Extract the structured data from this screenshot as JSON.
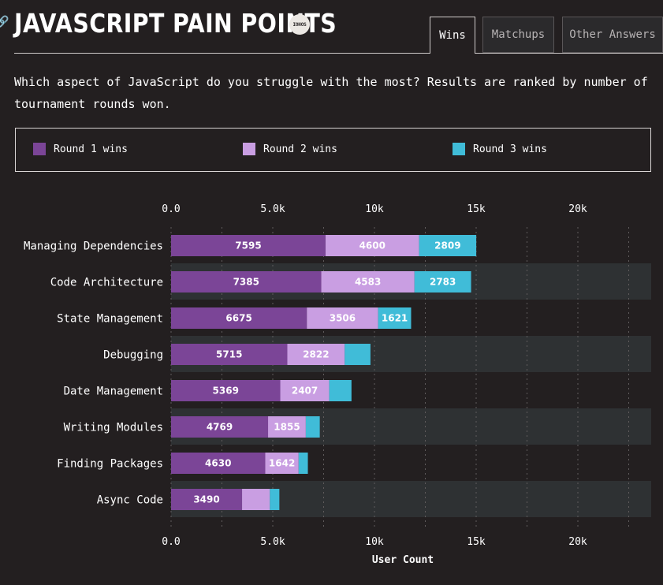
{
  "header": {
    "title": "JAVASCRIPT PAIN POINTS",
    "badge": "IOHOS"
  },
  "tabs": [
    {
      "label": "Wins",
      "active": true
    },
    {
      "label": "Matchups",
      "active": false
    },
    {
      "label": "Other Answers",
      "active": false
    }
  ],
  "description": "Which aspect of JavaScript do you struggle with the most? Results are ranked by number of tournament rounds won.",
  "colors": {
    "round1": "#7b4597",
    "round2": "#c99ee2",
    "round3": "#40bcd8",
    "band": "#2e3133"
  },
  "chart_data": {
    "type": "bar",
    "orientation": "horizontal",
    "stacked": true,
    "categories": [
      "Managing Dependencies",
      "Code Architecture",
      "State Management",
      "Debugging",
      "Date Management",
      "Writing Modules",
      "Finding Packages",
      "Async Code"
    ],
    "series": [
      {
        "name": "Round 1 wins",
        "values": [
          7595,
          7385,
          6675,
          5715,
          5369,
          4769,
          4630,
          3490
        ]
      },
      {
        "name": "Round 2 wins",
        "values": [
          4600,
          4583,
          3506,
          2822,
          2407,
          1855,
          1642,
          1367
        ]
      },
      {
        "name": "Round 3 wins",
        "values": [
          2809,
          2783,
          1621,
          1266,
          1094,
          687,
          454,
          468
        ]
      }
    ],
    "value_labels": [
      [
        "7595",
        "4600",
        "2809"
      ],
      [
        "7385",
        "4583",
        "2783"
      ],
      [
        "6675",
        "3506",
        "1621"
      ],
      [
        "5715",
        "2822",
        ""
      ],
      [
        "5369",
        "2407",
        ""
      ],
      [
        "4769",
        "1855",
        ""
      ],
      [
        "4630",
        "1642",
        ""
      ],
      [
        "3490",
        "",
        ""
      ]
    ],
    "xlim": [
      0,
      23000
    ],
    "xticks": [
      0,
      5000,
      10000,
      15000,
      20000
    ],
    "xtick_labels": [
      "0.0",
      "5.0k",
      "10k",
      "15k",
      "20k"
    ],
    "xlabel": "User Count",
    "legend_position": "top",
    "grid": true
  }
}
